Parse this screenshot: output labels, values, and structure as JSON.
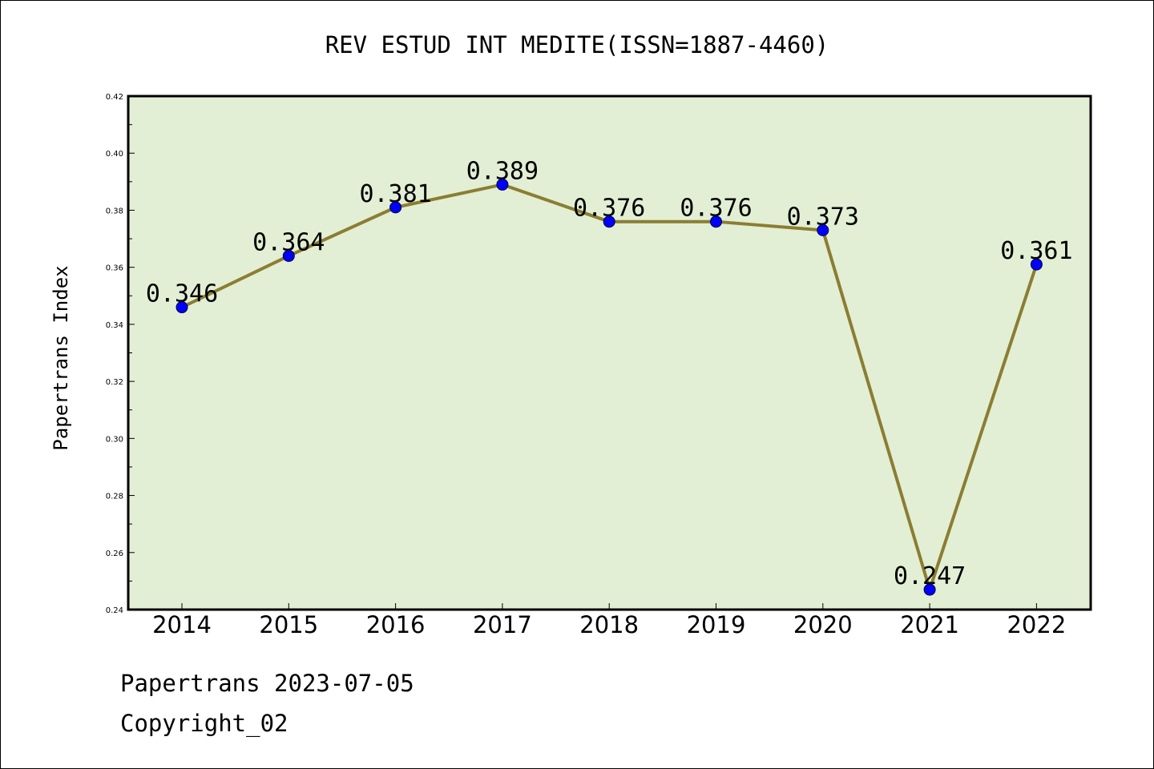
{
  "chart_data": {
    "type": "line",
    "title": "REV ESTUD INT MEDITE(ISSN=1887-4460)",
    "xlabel": "",
    "ylabel": "Papertrans Index",
    "categories": [
      "2014",
      "2015",
      "2016",
      "2017",
      "2018",
      "2019",
      "2020",
      "2021",
      "2022"
    ],
    "values": [
      0.346,
      0.364,
      0.381,
      0.389,
      0.376,
      0.376,
      0.373,
      0.247,
      0.361
    ],
    "data_labels": [
      "0.346",
      "0.364",
      "0.381",
      "0.389",
      "0.376",
      "0.376",
      "0.373",
      "0.247",
      "0.361"
    ],
    "ylim": [
      0.24,
      0.42
    ],
    "yticks": [
      "0.24",
      "0.26",
      "0.28",
      "0.30",
      "0.32",
      "0.34",
      "0.36",
      "0.38",
      "0.40",
      "0.42"
    ],
    "grid": false,
    "legend": "none",
    "colors": {
      "plot_background": "#e2efd4",
      "line": "#8b7d32",
      "marker": "#0000ff"
    }
  },
  "footer": {
    "line1": "Papertrans 2023-07-05",
    "line2": "Copyright_02"
  }
}
